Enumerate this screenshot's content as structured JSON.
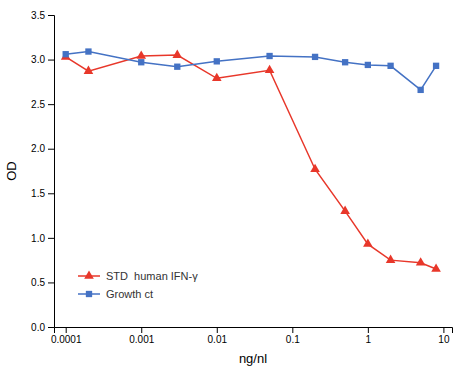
{
  "chart_data": {
    "type": "line",
    "x": [
      0.0001,
      0.0002,
      0.001,
      0.003,
      0.01,
      0.05,
      0.2,
      0.5,
      1.0,
      2.0,
      5.0,
      8.0
    ],
    "series": [
      {
        "name": "STD  human IFN-γ",
        "color": "#e8372a",
        "marker": "triangle",
        "values": [
          3.03,
          2.87,
          3.04,
          3.05,
          2.79,
          2.88,
          1.77,
          1.3,
          0.93,
          0.75,
          0.72,
          0.65
        ]
      },
      {
        "name": "Growth ct",
        "color": "#4472c4",
        "marker": "square",
        "values": [
          3.06,
          3.09,
          2.97,
          2.92,
          2.98,
          3.04,
          3.03,
          2.97,
          2.94,
          2.93,
          2.66,
          2.93
        ]
      }
    ],
    "xlabel": "ng/nl",
    "ylabel": "OD",
    "log": "x",
    "xlim": [
      7e-05,
      13
    ],
    "xticks": [
      0.0001,
      0.001,
      0.01,
      0.1,
      1,
      10
    ],
    "ylim": [
      0.0,
      3.5
    ],
    "yticks": [
      {
        "value": 0.0,
        "label": "0.0"
      },
      0.5,
      {
        "value": 1.0,
        "label": "1.0"
      },
      1.5,
      {
        "value": 2.0,
        "label": "2.0"
      },
      2.5,
      {
        "value": 3.0,
        "label": "3.0"
      },
      3.5
    ],
    "legend": "lower left",
    "grid": false
  }
}
